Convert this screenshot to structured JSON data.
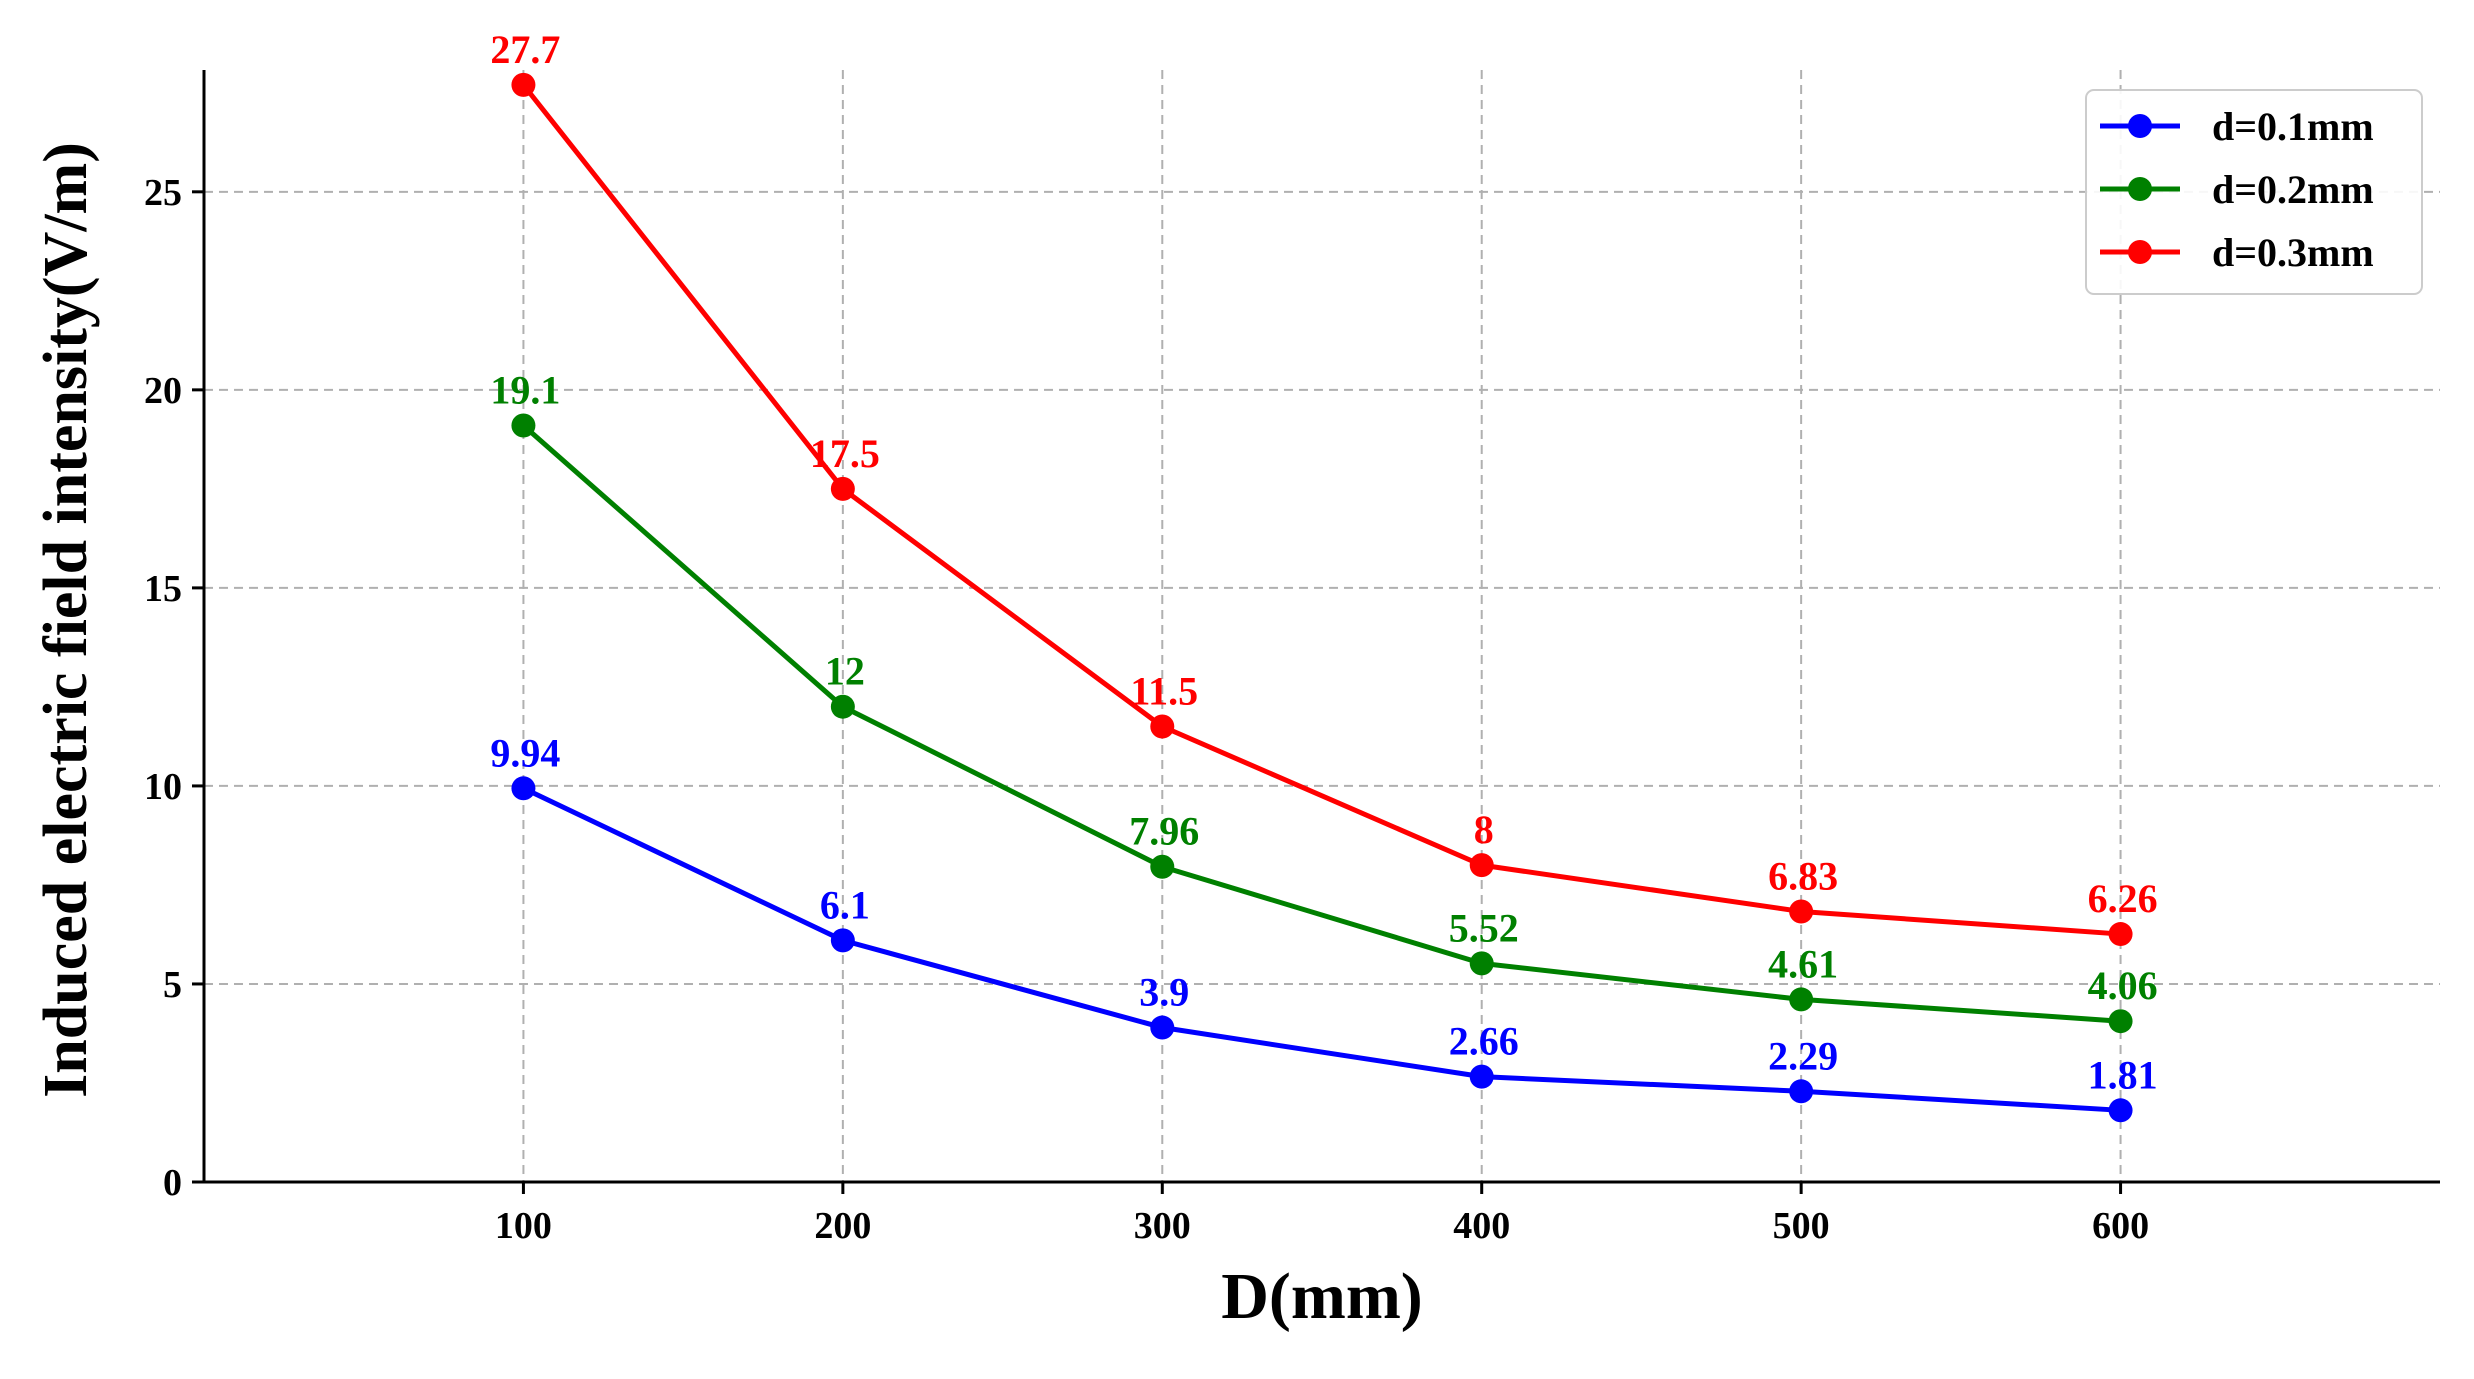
{
  "chart_data": {
    "type": "line",
    "title": "",
    "xlabel": "D(mm)",
    "ylabel": "Induced electric field intensity(V/m)",
    "x": [
      100,
      200,
      300,
      400,
      500,
      600
    ],
    "x_tick_labels": [
      "100",
      "200",
      "300",
      "400",
      "500",
      "600"
    ],
    "y_ticks": [
      0,
      5,
      10,
      15,
      20,
      25
    ],
    "y_tick_labels": [
      "0",
      "5",
      "10",
      "15",
      "20",
      "25"
    ],
    "xlim": [
      0,
      700
    ],
    "ylim": [
      0,
      28
    ],
    "grid": true,
    "grid_style": "dashed",
    "legend_position": "top-right",
    "series": [
      {
        "name": "d=0.1mm",
        "color": "#0000ff",
        "values": [
          9.94,
          6.1,
          3.9,
          2.66,
          2.29,
          1.81
        ],
        "labels": [
          "9.94",
          "6.1",
          "3.9",
          "2.66",
          "2.29",
          "1.81"
        ]
      },
      {
        "name": "d=0.2mm",
        "color": "#008000",
        "values": [
          19.1,
          12,
          7.96,
          5.52,
          4.61,
          4.06
        ],
        "labels": [
          "19.1",
          "12",
          "7.96",
          "5.52",
          "4.61",
          "4.06"
        ]
      },
      {
        "name": "d=0.3mm",
        "color": "#ff0000",
        "values": [
          27.7,
          17.5,
          11.5,
          8,
          6.83,
          6.26
        ],
        "labels": [
          "27.7",
          "17.5",
          "11.5",
          "8",
          "6.83",
          "6.26"
        ]
      }
    ]
  }
}
